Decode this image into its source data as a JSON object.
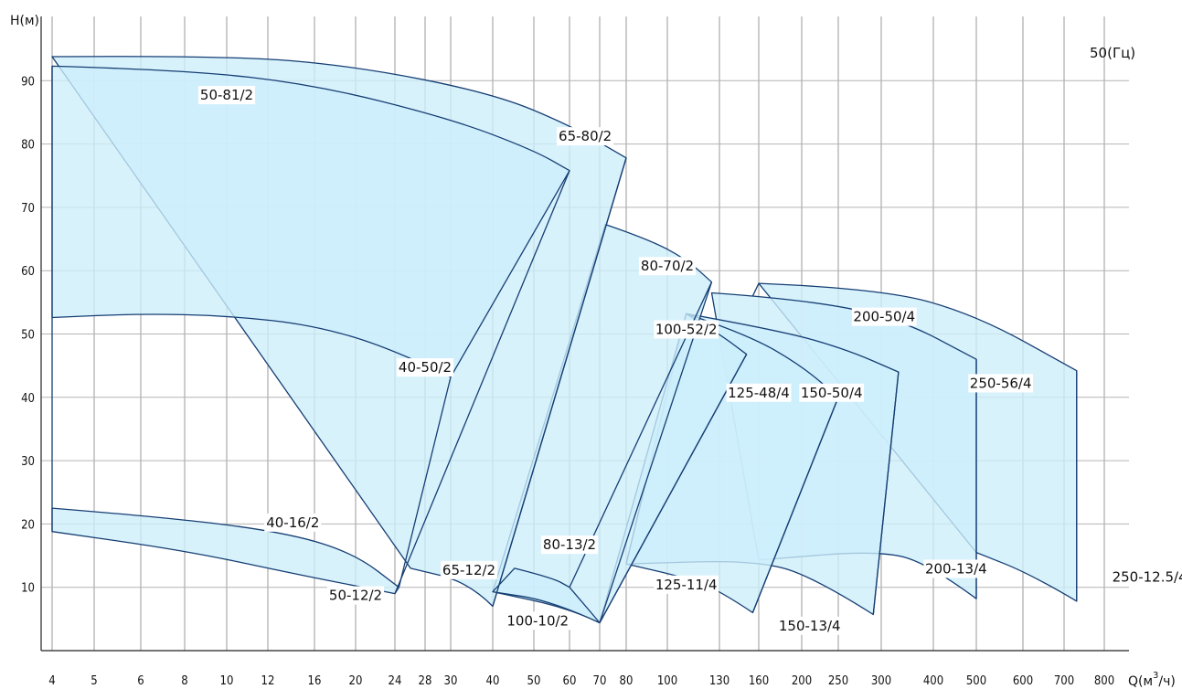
{
  "chart_data": {
    "type": "area",
    "title": "",
    "ylabel": "Н(м)",
    "xlabel": "Q(м³/ч)",
    "xlabel_main": "Q(м",
    "xlabel_sup": "3",
    "xlabel_tail": "/ч)",
    "frequency_label": "50(Гц)",
    "x_scale": "log",
    "ylim": [
      0,
      97
    ],
    "y_ticks": [
      10,
      20,
      30,
      40,
      50,
      60,
      70,
      80,
      90
    ],
    "y_tick_labels": [
      "10",
      "20",
      "30",
      "40",
      "50",
      "60",
      "70",
      "80",
      "90"
    ],
    "x_ticks": [
      4,
      5,
      6,
      8,
      10,
      12,
      16,
      20,
      24,
      28,
      30,
      40,
      50,
      60,
      70,
      80,
      100,
      130,
      160,
      200,
      250,
      300,
      400,
      500,
      600,
      700,
      800
    ],
    "x_tick_labels": [
      "4",
      "5",
      "6",
      "8",
      "10",
      "12",
      "16",
      "20",
      "24",
      "28",
      "30",
      "40",
      "50",
      "60",
      "70",
      "80",
      "100",
      "130",
      "160",
      "200",
      "250",
      "300",
      "400",
      "500",
      "600",
      "700",
      "800"
    ],
    "grid": true,
    "series": [
      {
        "name": "50-81/2",
        "color": "#cdeefb",
        "upper": [
          [
            4,
            92.3
          ],
          [
            8,
            91.7
          ],
          [
            16,
            89.4
          ],
          [
            30,
            84.0
          ],
          [
            50,
            79.0
          ],
          [
            60,
            75.8
          ]
        ],
        "lower": [
          [
            4,
            52.6
          ],
          [
            6,
            53.2
          ],
          [
            10,
            52.9
          ],
          [
            16,
            51.4
          ],
          [
            24,
            47.5
          ],
          [
            30,
            43.2
          ]
        ]
      },
      {
        "name": "65-80/2",
        "color": "#cdeefb",
        "upper": [
          [
            4,
            93.8
          ],
          [
            10,
            94.0
          ],
          [
            20,
            92.3
          ],
          [
            40,
            88.0
          ],
          [
            60,
            83.0
          ],
          [
            80,
            77.8
          ]
        ],
        "lower": [
          [
            26,
            13.0
          ],
          [
            34,
            10.8
          ],
          [
            40,
            7.0
          ]
        ]
      },
      {
        "name": "80-70/2",
        "color": "#cdeefb",
        "upper": [
          [
            72,
            67.3
          ],
          [
            90,
            65.0
          ],
          [
            110,
            61.8
          ],
          [
            125,
            58.2
          ]
        ],
        "lower": [
          [
            40,
            9.3
          ],
          [
            60,
            6.7
          ],
          [
            70,
            4.4
          ]
        ]
      },
      {
        "name": "40-50/2",
        "color": "#cdeefb",
        "upper": [],
        "lower": []
      },
      {
        "name": "40-16/2",
        "color": "#cdeefb",
        "upper": [
          [
            4,
            22.5
          ],
          [
            8,
            20.8
          ],
          [
            14,
            18.4
          ],
          [
            20,
            15.2
          ],
          [
            24.5,
            10.0
          ]
        ],
        "lower": [
          [
            4,
            18.8
          ],
          [
            8,
            15.8
          ],
          [
            14,
            12.2
          ],
          [
            20,
            10.2
          ],
          [
            24,
            9.0
          ]
        ]
      },
      {
        "name": "50-12/2",
        "color": "#cdeefb",
        "upper": [],
        "lower": []
      },
      {
        "name": "65-12/2",
        "color": "#cdeefb",
        "upper": [],
        "lower": []
      },
      {
        "name": "80-13/2",
        "color": "#cdeefb",
        "upper": [
          [
            45,
            13.0
          ],
          [
            55,
            11.5
          ],
          [
            60,
            10.0
          ]
        ],
        "lower": []
      },
      {
        "name": "100-10/2",
        "color": "#cdeefb",
        "upper": [],
        "lower": []
      },
      {
        "name": "100-52/2",
        "color": "#cdeefb",
        "upper": [
          [
            110,
            53.2
          ],
          [
            130,
            50.0
          ],
          [
            150,
            46.8
          ]
        ],
        "lower": []
      },
      {
        "name": "125-48/4",
        "color": "#cdeefb",
        "upper": [
          [
            110,
            53.2
          ],
          [
            150,
            50.0
          ],
          [
            200,
            45.0
          ],
          [
            250,
            40.0
          ]
        ],
        "lower": [
          [
            80,
            13.7
          ],
          [
            110,
            11.5
          ],
          [
            130,
            9.5
          ],
          [
            155,
            6.0
          ]
        ]
      },
      {
        "name": "125-11/4",
        "color": "#cdeefb",
        "upper": [],
        "lower": []
      },
      {
        "name": "150-50/4",
        "color": "#cdeefb",
        "upper": [
          [
            125,
            56.5
          ],
          [
            200,
            53.5
          ],
          [
            280,
            49.0
          ],
          [
            330,
            44.0
          ]
        ],
        "lower": [
          [
            160,
            14.3
          ],
          [
            220,
            11.3
          ],
          [
            290,
            5.7
          ]
        ]
      },
      {
        "name": "150-13/4",
        "color": "#cdeefb",
        "upper": [],
        "lower": []
      },
      {
        "name": "200-50/4",
        "color": "#cdeefb",
        "upper": [
          [
            160,
            58.0
          ],
          [
            250,
            57.0
          ],
          [
            350,
            55.5
          ],
          [
            500,
            46.0
          ]
        ],
        "lower": [
          [
            305,
            15.9
          ],
          [
            400,
            13.2
          ],
          [
            500,
            8.2
          ]
        ]
      },
      {
        "name": "200-13/4",
        "color": "#cdeefb",
        "upper": [],
        "lower": []
      },
      {
        "name": "250-56/4",
        "color": "#cdeefb",
        "upper": [
          [
            160,
            58.0
          ],
          [
            300,
            57.2
          ],
          [
            500,
            53.0
          ],
          [
            730,
            44.2
          ]
        ],
        "lower": [
          [
            500,
            15.5
          ],
          [
            620,
            12.0
          ],
          [
            730,
            7.8
          ]
        ]
      },
      {
        "name": "250-12.5/4",
        "color": "#cdeefb",
        "upper": [],
        "lower": []
      }
    ],
    "region_labels": [
      "50-81/2",
      "65-80/2",
      "80-70/2",
      "40-50/2",
      "40-16/2",
      "50-12/2",
      "65-12/2",
      "80-13/2",
      "100-10/2",
      "100-52/2",
      "125-48/4",
      "125-11/4",
      "150-50/4",
      "150-13/4",
      "200-50/4",
      "200-13/4",
      "250-56/4",
      "250-12.5/4"
    ],
    "label_anchors": [
      [
        10,
        87
      ],
      [
        65,
        80.5
      ],
      [
        100,
        60
      ],
      [
        28,
        44
      ],
      [
        14,
        19.5
      ],
      [
        20,
        8
      ],
      [
        34,
        12
      ],
      [
        60,
        16
      ],
      [
        51,
        4
      ],
      [
        110,
        50
      ],
      [
        160,
        40
      ],
      [
        110,
        9.7
      ],
      [
        240,
        40
      ],
      [
        210,
        3.2
      ],
      [
        305,
        52
      ],
      [
        450,
        12.2
      ],
      [
        550,
        41.5
      ],
      [
        930,
        10.9
      ]
    ]
  }
}
